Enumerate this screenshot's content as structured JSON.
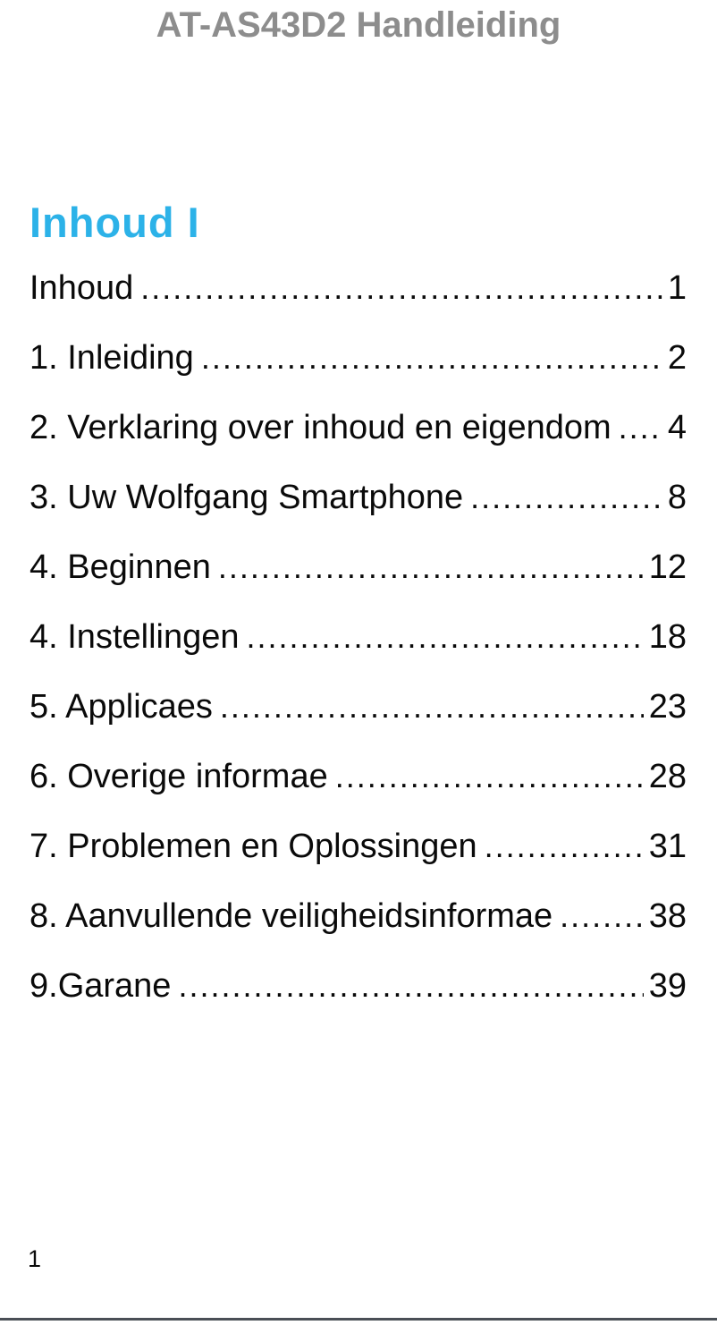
{
  "header": {
    "title": "AT-AS43D2 Handleiding"
  },
  "section": {
    "title": "Inhoud I"
  },
  "toc": {
    "entries": [
      {
        "label": "Inhoud",
        "page": "1"
      },
      {
        "label": "1. Inleiding",
        "page": "2"
      },
      {
        "label": "2. Verklaring over inhoud en eigendom",
        "page": "4"
      },
      {
        "label": "3. Uw Wolfgang Smartphone",
        "page": "8"
      },
      {
        "label": "4. Beginnen",
        "page": "12"
      },
      {
        "label": "4. Instellingen",
        "page": "18"
      },
      {
        "label": "5. Applicaes",
        "page": "23"
      },
      {
        "label": "6. Overige informae",
        "page": "28"
      },
      {
        "label": "7. Problemen en Oplossingen",
        "page": "31"
      },
      {
        "label": "8. Aanvullende veiligheidsinformae",
        "page": "38"
      },
      {
        "label": "9.Garane",
        "page": "39"
      }
    ]
  },
  "footer": {
    "page_number": "1"
  },
  "colors": {
    "accent": "#2cb2e8",
    "header_gray": "#8d8d8d",
    "divider": "#4a4f56",
    "text": "#0a0a0a"
  }
}
